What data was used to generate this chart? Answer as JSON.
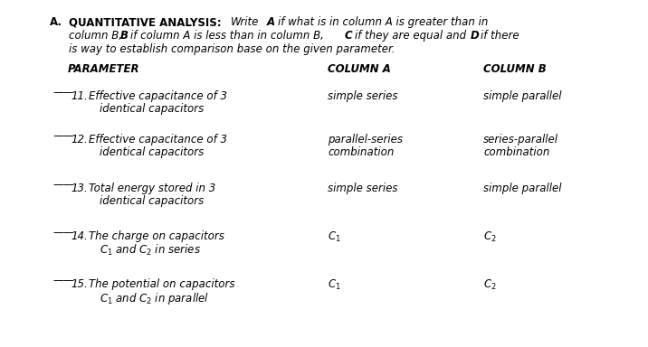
{
  "bg_color": "#ffffff",
  "fig_w": 7.16,
  "fig_h": 3.84,
  "dpi": 100,
  "fs_title": 8.5,
  "fs_body": 8.5,
  "fs_header": 8.5,
  "rows": [
    {
      "number": "11.",
      "param_line1": "Effective capacitance of 3",
      "param_line2": "identical capacitors",
      "col_a_line1": "simple series",
      "col_a_line2": "",
      "col_b_line1": "simple parallel",
      "col_b_line2": ""
    },
    {
      "number": "12.",
      "param_line1": "Effective capacitance of 3",
      "param_line2": "identical capacitors",
      "col_a_line1": "parallel-series",
      "col_a_line2": "combination",
      "col_b_line1": "series-parallel",
      "col_b_line2": "combination"
    },
    {
      "number": "13.",
      "param_line1": "Total energy stored in 3",
      "param_line2": "identical capacitors",
      "col_a_line1": "simple series",
      "col_a_line2": "",
      "col_b_line1": "simple parallel",
      "col_b_line2": ""
    },
    {
      "number": "14.",
      "param_line1": "The charge on capacitors",
      "param_line2": "$C_1$ and $C_2$ in series",
      "col_a_line1": "$C_1$",
      "col_a_line2": "",
      "col_b_line1": "$C_2$",
      "col_b_line2": ""
    },
    {
      "number": "15.",
      "param_line1": "The potential on capacitors",
      "param_line2": "$C_1$ and $C_2$ in parallel",
      "col_a_line1": "$C_1$",
      "col_a_line2": "",
      "col_b_line1": "$C_2$",
      "col_b_line2": ""
    }
  ]
}
